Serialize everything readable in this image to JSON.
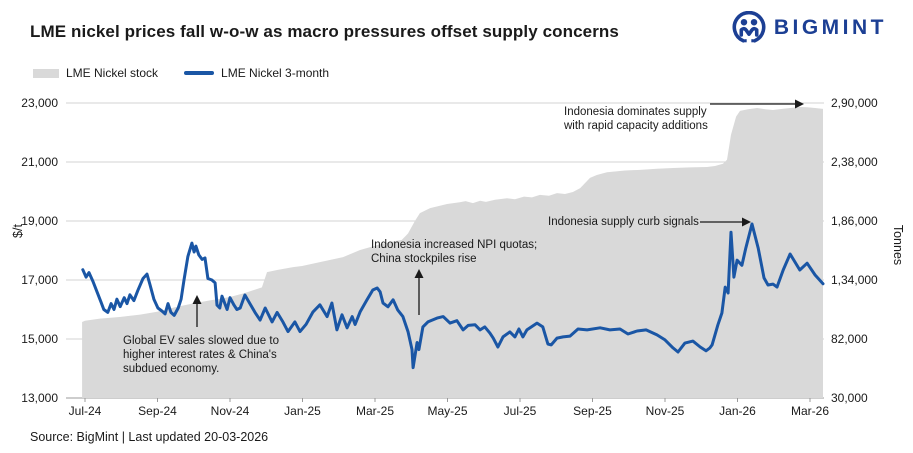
{
  "header": {
    "title": "LME nickel prices fall w-o-w as macro pressures offset supply concerns",
    "brand": "BIGMINT",
    "brand_color": "#1c3f94"
  },
  "legend": [
    {
      "label": "LME Nickel stock",
      "type": "area",
      "color": "#d9d9d9"
    },
    {
      "label": "LME Nickel 3-month",
      "type": "line",
      "color": "#1a56a5"
    }
  ],
  "annotations": [
    {
      "id": "global-ev",
      "arrow": "up",
      "lines": [
        "Global EV sales slowed due to",
        "higher interest rates & China's",
        "subdued economy."
      ]
    },
    {
      "id": "npi-quotas",
      "arrow": "up",
      "lines": [
        "Indonesia increased NPI quotas;",
        "China stockpiles rise"
      ]
    },
    {
      "id": "supply-curb",
      "arrow": "right",
      "lines": [
        "Indonesia supply curb signals"
      ]
    },
    {
      "id": "indonesia-dominates",
      "arrow": "right",
      "lines": [
        "Indonesia dominates supply",
        "with rapid capacity additions"
      ]
    }
  ],
  "source": "Source: BigMint | Last updated 20-03-2026",
  "chart_data": {
    "type": "line+area",
    "title": "LME nickel prices fall w-o-w as macro pressures offset supply concerns",
    "grid": "horizontal",
    "legend_position": "top-left",
    "x": {
      "unit": "month index from Jul-2024 (0 = Jul-24, 1 month per unit)",
      "tick_labels": [
        "Jul-24",
        "Sep-24",
        "Nov-24",
        "Jan-25",
        "Mar-25",
        "May-25",
        "Jul-25",
        "Sep-25",
        "Nov-25",
        "Jan-26",
        "Mar-26"
      ],
      "tick_positions": [
        0,
        2,
        4,
        6,
        8,
        10,
        12,
        14,
        16,
        18,
        20
      ]
    },
    "y_left": {
      "label": "$/t",
      "range": [
        13000,
        23000
      ],
      "tick_labels": [
        "23,000",
        "21,000",
        "19,000",
        "17,000",
        "15,000",
        "13,000"
      ]
    },
    "y_right": {
      "label": "Tonnes",
      "range": [
        30000,
        290000
      ],
      "tick_labels": [
        "2,90,000",
        "2,38,000",
        "1,86,000",
        "1,34,000",
        "82,000",
        "30,000"
      ]
    },
    "series": [
      {
        "name": "LME Nickel stock",
        "type": "area",
        "axis": "right",
        "color": "#d9d9d9",
        "points": [
          [
            -0.08,
            97000
          ],
          [
            0,
            98000
          ],
          [
            0.41,
            100000
          ],
          [
            0.99,
            101500
          ],
          [
            1.52,
            103500
          ],
          [
            1.99,
            106000
          ],
          [
            2.48,
            110000
          ],
          [
            3.01,
            113500
          ],
          [
            3.45,
            116000
          ],
          [
            4.0,
            119000
          ],
          [
            4.41,
            122500
          ],
          [
            4.88,
            127500
          ],
          [
            5.02,
            141000
          ],
          [
            5.3,
            142800
          ],
          [
            5.74,
            145400
          ],
          [
            5.99,
            146300
          ],
          [
            6.48,
            149800
          ],
          [
            7.12,
            154200
          ],
          [
            7.59,
            160400
          ],
          [
            8.06,
            164800
          ],
          [
            8.41,
            167500
          ],
          [
            8.74,
            169300
          ],
          [
            8.91,
            175000
          ],
          [
            9.1,
            186000
          ],
          [
            9.24,
            193000
          ],
          [
            9.52,
            197400
          ],
          [
            9.99,
            201000
          ],
          [
            10.34,
            202500
          ],
          [
            10.5,
            203500
          ],
          [
            10.7,
            201800
          ],
          [
            10.9,
            203800
          ],
          [
            11.06,
            202800
          ],
          [
            11.31,
            204800
          ],
          [
            11.64,
            206000
          ],
          [
            11.86,
            205200
          ],
          [
            12.11,
            207500
          ],
          [
            12.33,
            206800
          ],
          [
            12.55,
            209000
          ],
          [
            12.8,
            208200
          ],
          [
            13.02,
            210600
          ],
          [
            13.24,
            209800
          ],
          [
            13.46,
            211600
          ],
          [
            13.66,
            215000
          ],
          [
            13.93,
            224000
          ],
          [
            14.12,
            226500
          ],
          [
            14.4,
            229000
          ],
          [
            14.9,
            230500
          ],
          [
            15.31,
            231000
          ],
          [
            15.78,
            232000
          ],
          [
            16.22,
            232700
          ],
          [
            16.69,
            233200
          ],
          [
            17.16,
            233600
          ],
          [
            17.38,
            234500
          ],
          [
            17.6,
            236500
          ],
          [
            17.71,
            240000
          ],
          [
            17.82,
            262000
          ],
          [
            17.96,
            278000
          ],
          [
            18.07,
            283000
          ],
          [
            18.29,
            284500
          ],
          [
            18.54,
            285600
          ],
          [
            18.76,
            284500
          ],
          [
            18.98,
            283800
          ],
          [
            19.23,
            284800
          ],
          [
            19.45,
            285600
          ],
          [
            19.72,
            286500
          ],
          [
            19.92,
            286200
          ],
          [
            20.14,
            285600
          ],
          [
            20.36,
            284800
          ]
        ]
      },
      {
        "name": "LME Nickel 3-month",
        "type": "line",
        "axis": "left",
        "color": "#1a56a5",
        "points": [
          [
            -0.06,
            17350
          ],
          [
            0.03,
            17100
          ],
          [
            0.11,
            17250
          ],
          [
            0.22,
            16950
          ],
          [
            0.33,
            16600
          ],
          [
            0.44,
            16250
          ],
          [
            0.52,
            16000
          ],
          [
            0.63,
            15900
          ],
          [
            0.72,
            16200
          ],
          [
            0.8,
            16000
          ],
          [
            0.88,
            16350
          ],
          [
            0.97,
            16100
          ],
          [
            1.08,
            16400
          ],
          [
            1.16,
            16200
          ],
          [
            1.24,
            16500
          ],
          [
            1.35,
            16300
          ],
          [
            1.46,
            16650
          ],
          [
            1.6,
            17050
          ],
          [
            1.71,
            17200
          ],
          [
            1.79,
            16850
          ],
          [
            1.9,
            16350
          ],
          [
            2.01,
            16050
          ],
          [
            2.12,
            15950
          ],
          [
            2.21,
            15850
          ],
          [
            2.29,
            16200
          ],
          [
            2.37,
            15900
          ],
          [
            2.46,
            15800
          ],
          [
            2.57,
            16050
          ],
          [
            2.65,
            16350
          ],
          [
            2.73,
            17000
          ],
          [
            2.84,
            17800
          ],
          [
            2.95,
            18250
          ],
          [
            3.01,
            17950
          ],
          [
            3.06,
            18150
          ],
          [
            3.14,
            17850
          ],
          [
            3.23,
            17700
          ],
          [
            3.31,
            17750
          ],
          [
            3.39,
            17050
          ],
          [
            3.5,
            17000
          ],
          [
            3.59,
            16900
          ],
          [
            3.64,
            16150
          ],
          [
            3.72,
            16050
          ],
          [
            3.78,
            16450
          ],
          [
            3.92,
            16000
          ],
          [
            4.0,
            16400
          ],
          [
            4.11,
            16150
          ],
          [
            4.19,
            16000
          ],
          [
            4.28,
            16050
          ],
          [
            4.41,
            16490
          ],
          [
            4.55,
            16200
          ],
          [
            4.69,
            15900
          ],
          [
            4.83,
            15640
          ],
          [
            4.97,
            16050
          ],
          [
            5.16,
            15580
          ],
          [
            5.3,
            15900
          ],
          [
            5.46,
            15580
          ],
          [
            5.6,
            15250
          ],
          [
            5.79,
            15580
          ],
          [
            5.93,
            15250
          ],
          [
            6.1,
            15500
          ],
          [
            6.29,
            15920
          ],
          [
            6.48,
            16160
          ],
          [
            6.68,
            15760
          ],
          [
            6.81,
            16220
          ],
          [
            6.95,
            15310
          ],
          [
            7.09,
            15820
          ],
          [
            7.23,
            15380
          ],
          [
            7.37,
            15760
          ],
          [
            7.45,
            15490
          ],
          [
            7.59,
            15920
          ],
          [
            7.78,
            16330
          ],
          [
            7.94,
            16660
          ],
          [
            8.06,
            16730
          ],
          [
            8.14,
            16600
          ],
          [
            8.22,
            16220
          ],
          [
            8.36,
            16090
          ],
          [
            8.5,
            16330
          ],
          [
            8.63,
            15980
          ],
          [
            8.77,
            15760
          ],
          [
            8.91,
            15250
          ],
          [
            9.02,
            14640
          ],
          [
            9.05,
            14030
          ],
          [
            9.16,
            14880
          ],
          [
            9.21,
            14640
          ],
          [
            9.32,
            15410
          ],
          [
            9.46,
            15580
          ],
          [
            9.71,
            15710
          ],
          [
            9.88,
            15760
          ],
          [
            10.07,
            15540
          ],
          [
            10.26,
            15620
          ],
          [
            10.43,
            15310
          ],
          [
            10.57,
            15460
          ],
          [
            10.76,
            15480
          ],
          [
            10.9,
            15310
          ],
          [
            11.03,
            15410
          ],
          [
            11.17,
            15200
          ],
          [
            11.26,
            15030
          ],
          [
            11.39,
            14730
          ],
          [
            11.53,
            15070
          ],
          [
            11.72,
            15240
          ],
          [
            11.86,
            15070
          ],
          [
            11.97,
            15340
          ],
          [
            12.08,
            15070
          ],
          [
            12.19,
            15310
          ],
          [
            12.47,
            15540
          ],
          [
            12.63,
            15410
          ],
          [
            12.77,
            14830
          ],
          [
            12.86,
            14800
          ],
          [
            13.02,
            15030
          ],
          [
            13.19,
            15070
          ],
          [
            13.38,
            15100
          ],
          [
            13.6,
            15340
          ],
          [
            13.85,
            15310
          ],
          [
            14.21,
            15380
          ],
          [
            14.48,
            15310
          ],
          [
            14.76,
            15340
          ],
          [
            14.98,
            15170
          ],
          [
            15.23,
            15270
          ],
          [
            15.48,
            15310
          ],
          [
            15.78,
            15140
          ],
          [
            16.0,
            14970
          ],
          [
            16.22,
            14700
          ],
          [
            16.36,
            14560
          ],
          [
            16.55,
            14860
          ],
          [
            16.77,
            14930
          ],
          [
            16.97,
            14730
          ],
          [
            17.13,
            14600
          ],
          [
            17.24,
            14700
          ],
          [
            17.3,
            14800
          ],
          [
            17.46,
            15480
          ],
          [
            17.57,
            15880
          ],
          [
            17.66,
            16760
          ],
          [
            17.74,
            16560
          ],
          [
            17.82,
            18620
          ],
          [
            17.9,
            17100
          ],
          [
            17.99,
            17670
          ],
          [
            18.12,
            17500
          ],
          [
            18.23,
            18080
          ],
          [
            18.4,
            18900
          ],
          [
            18.57,
            18080
          ],
          [
            18.73,
            17070
          ],
          [
            18.84,
            16830
          ],
          [
            18.98,
            16860
          ],
          [
            19.09,
            16760
          ],
          [
            19.26,
            17340
          ],
          [
            19.45,
            17880
          ],
          [
            19.72,
            17340
          ],
          [
            19.92,
            17570
          ],
          [
            20.14,
            17170
          ],
          [
            20.36,
            16870
          ]
        ]
      }
    ]
  }
}
